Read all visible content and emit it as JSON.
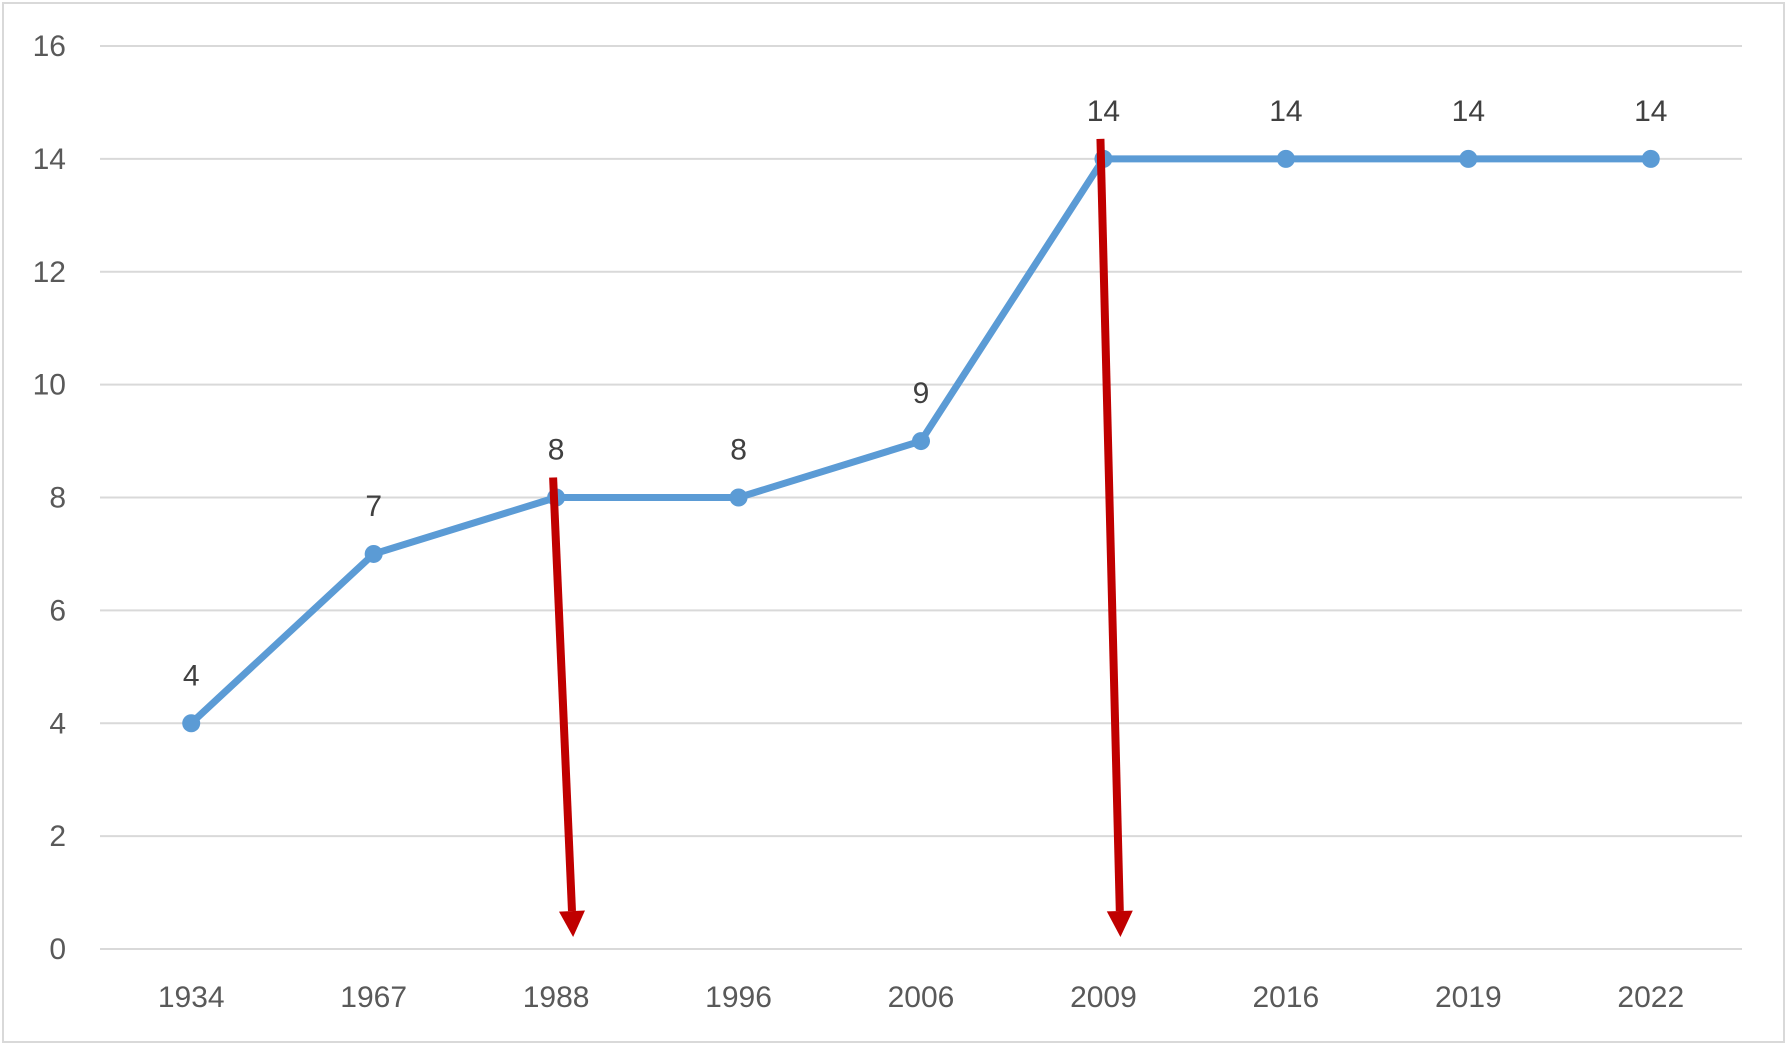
{
  "chart_data": {
    "type": "line",
    "title": "",
    "xlabel": "",
    "ylabel": "",
    "categories": [
      "1934",
      "1967",
      "1988",
      "1996",
      "2006",
      "2009",
      "2016",
      "2019",
      "2022"
    ],
    "series": [
      {
        "values": [
          4,
          7,
          8,
          8,
          9,
          14,
          14,
          14,
          14
        ]
      }
    ],
    "ylim": [
      0,
      16
    ],
    "yticks": [
      0,
      2,
      4,
      6,
      8,
      10,
      12,
      14,
      16
    ],
    "grid": true,
    "data_labels": true,
    "legend": "none",
    "annotations": [
      {
        "type": "arrow",
        "category": "1988",
        "from_value": 8,
        "direction": "down"
      },
      {
        "type": "arrow",
        "category": "2009",
        "from_value": 14,
        "direction": "down"
      }
    ],
    "colors": {
      "line": "#5b9bd5",
      "gridline": "#d9d9d9",
      "arrow": "#c00000",
      "tick_label": "#595959",
      "data_label": "#404040"
    }
  }
}
